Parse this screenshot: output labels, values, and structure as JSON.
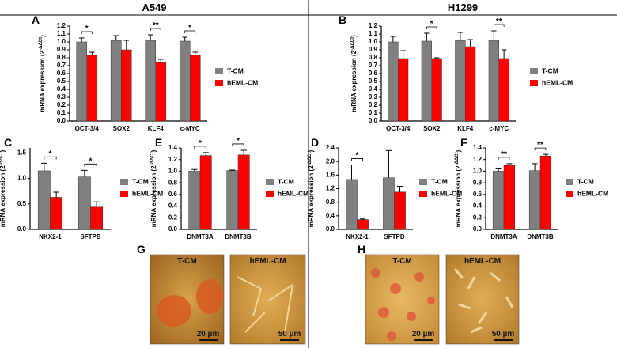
{
  "columns": [
    "A549",
    "H1299"
  ],
  "chart_data": [
    {
      "type": "bar",
      "label": "A",
      "ylabel": [
        "mRNA expression (2",
        "-ΔΔCt",
        ")"
      ],
      "categories": [
        "OCT-3/4",
        "SOX2",
        "KLF4",
        "c-MYC"
      ],
      "series": [
        {
          "name": "T-CM",
          "color": "#808080",
          "values": [
            1.0,
            1.02,
            1.02,
            1.01
          ],
          "errors": [
            0.05,
            0.06,
            0.07,
            0.05
          ]
        },
        {
          "name": "hEML-CM",
          "color": "#ff0000",
          "values": [
            0.83,
            0.9,
            0.74,
            0.83
          ],
          "errors": [
            0.04,
            0.12,
            0.04,
            0.04
          ]
        }
      ],
      "significance": [
        "*",
        null,
        "**",
        "*"
      ],
      "ylim": [
        0,
        1.2
      ],
      "yticks": [
        {
          "value": 0,
          "label": "0.0"
        },
        0.1,
        0.2,
        0.3,
        0.4,
        0.5,
        0.6,
        0.7,
        0.8,
        0.9,
        {
          "value": 1.0,
          "label": "1.0"
        },
        1.1,
        1.2
      ]
    },
    {
      "type": "bar",
      "label": "B",
      "ylabel": [
        "mRNA expression (2",
        "-ΔΔCt",
        ")"
      ],
      "categories": [
        "OCT-3/4",
        "SOX2",
        "KLF4",
        "c-MYC"
      ],
      "series": [
        {
          "name": "T-CM",
          "color": "#808080",
          "values": [
            1.0,
            1.01,
            1.02,
            1.02
          ],
          "errors": [
            0.07,
            0.1,
            0.1,
            0.12
          ]
        },
        {
          "name": "hEML-CM",
          "color": "#ff0000",
          "values": [
            0.79,
            0.79,
            0.94,
            0.79
          ],
          "errors": [
            0.1,
            0.01,
            0.09,
            0.11
          ]
        }
      ],
      "significance": [
        null,
        "*",
        null,
        "**"
      ],
      "ylim": [
        0,
        1.2
      ],
      "yticks": [
        {
          "value": 0,
          "label": "0.0"
        },
        0.1,
        0.2,
        0.3,
        0.4,
        0.5,
        0.6,
        0.7,
        0.8,
        0.9,
        {
          "value": 1.0,
          "label": "1.0"
        },
        1.1,
        1.2
      ]
    },
    {
      "type": "bar",
      "label": "C",
      "ylabel": [
        "mRNA expression (2",
        "-ΔΔCt",
        ")"
      ],
      "categories": [
        "NKX2-1",
        "SFTPB"
      ],
      "series": [
        {
          "name": "T-CM",
          "color": "#808080",
          "values": [
            1.15,
            1.03
          ],
          "errors": [
            0.15,
            0.13
          ]
        },
        {
          "name": "hEML-CM",
          "color": "#ff0000",
          "values": [
            0.63,
            0.44
          ],
          "errors": [
            0.1,
            0.1
          ]
        }
      ],
      "significance": [
        "*",
        "*"
      ],
      "ylim": [
        0,
        1.6
      ],
      "yticks": [
        {
          "value": 0,
          "label": "0.0"
        },
        0.5,
        {
          "value": 1.0,
          "label": "1.0"
        },
        1.5
      ]
    },
    {
      "type": "bar",
      "label": "D",
      "ylabel": [
        "mRNA expression (2",
        "-ΔΔCt",
        ")"
      ],
      "categories": [
        "NKX2-1",
        "SFTPD"
      ],
      "series": [
        {
          "name": "T-CM",
          "color": "#808080",
          "values": [
            1.47,
            1.52
          ],
          "errors": [
            0.43,
            0.8
          ]
        },
        {
          "name": "hEML-CM",
          "color": "#ff0000",
          "values": [
            0.29,
            1.1
          ],
          "errors": [
            0.02,
            0.17
          ]
        }
      ],
      "significance": [
        "*",
        null
      ],
      "ylim": [
        0,
        2.4
      ],
      "yticks": [
        {
          "value": 0,
          "label": "0.0"
        },
        0.4,
        0.8,
        1.2,
        1.6,
        {
          "value": 2.0,
          "label": "2.0"
        },
        2.4
      ]
    },
    {
      "type": "bar",
      "label": "E",
      "ylabel": [
        "mRNA expression (2",
        "-ΔΔCt",
        ")"
      ],
      "categories": [
        "DNMT3A",
        "DNMT3B"
      ],
      "series": [
        {
          "name": "T-CM",
          "color": "#808080",
          "values": [
            1.0,
            1.01
          ],
          "errors": [
            0.03,
            0.01
          ]
        },
        {
          "name": "hEML-CM",
          "color": "#ff0000",
          "values": [
            1.27,
            1.28
          ],
          "errors": [
            0.05,
            0.08
          ]
        }
      ],
      "significance": [
        "*",
        "*"
      ],
      "ylim": [
        0,
        1.4
      ],
      "yticks": [
        {
          "value": 0,
          "label": "0.0"
        },
        0.2,
        0.4,
        0.6,
        0.8,
        {
          "value": 1.0,
          "label": "1.0"
        },
        1.2,
        1.4
      ]
    },
    {
      "type": "bar",
      "label": "F",
      "ylabel": [
        "mRNA expression (2",
        "-ΔΔCt",
        ")"
      ],
      "categories": [
        "DNMT3A",
        "DNMT3B"
      ],
      "series": [
        {
          "name": "T-CM",
          "color": "#808080",
          "values": [
            1.0,
            1.01
          ],
          "errors": [
            0.04,
            0.12
          ]
        },
        {
          "name": "hEML-CM",
          "color": "#ff0000",
          "values": [
            1.1,
            1.26
          ],
          "errors": [
            0.03,
            0.03
          ]
        }
      ],
      "significance": [
        "**",
        "**"
      ],
      "ylim": [
        0,
        1.4
      ],
      "yticks": [
        {
          "value": 0,
          "label": "0.0"
        },
        0.2,
        0.4,
        0.6,
        0.8,
        {
          "value": 1.0,
          "label": "1.0"
        },
        1.2,
        1.4
      ]
    }
  ],
  "images": [
    {
      "label": "G",
      "panels": [
        {
          "title": "T-CM",
          "scale": "20 µm"
        },
        {
          "title": "hEML-CM",
          "scale": "50 µm"
        }
      ]
    },
    {
      "label": "H",
      "panels": [
        {
          "title": "T-CM",
          "scale": "20 µm"
        },
        {
          "title": "hEML-CM",
          "scale": "50 µm"
        }
      ]
    }
  ]
}
